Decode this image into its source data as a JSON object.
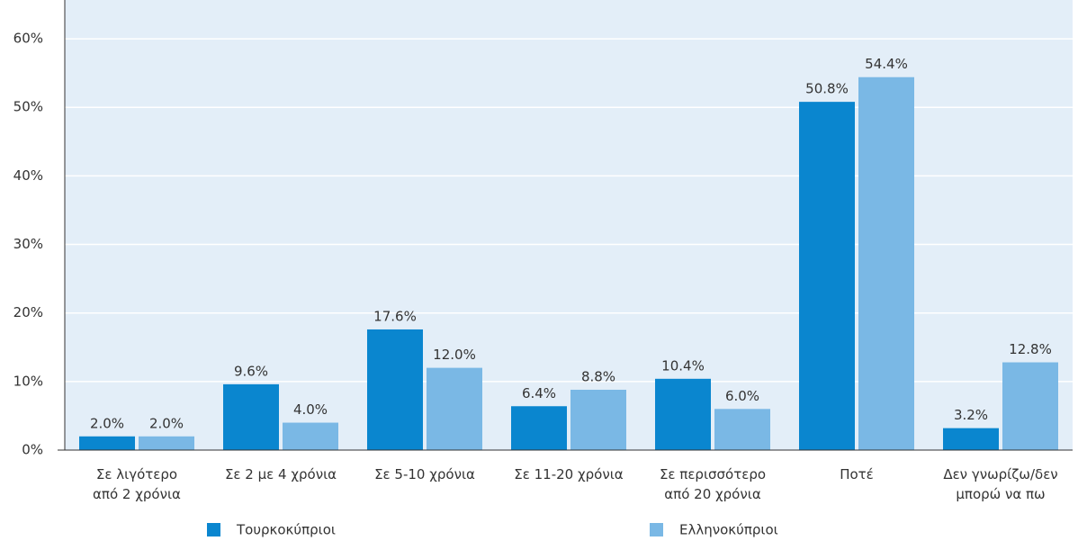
{
  "chart_data": {
    "type": "bar",
    "categories": [
      [
        "Σε λιγότερο",
        "από 2 χρόνια"
      ],
      [
        "Σε 2 με 4 χρόνια"
      ],
      [
        "Σε 5-10 χρόνια"
      ],
      [
        "Σε 11-20 χρόνια"
      ],
      [
        "Σε περισσότερο",
        "από 20 χρόνια"
      ],
      [
        "Ποτέ"
      ],
      [
        "Δεν γνωρίζω/δεν",
        "μπορώ να πω"
      ]
    ],
    "series": [
      {
        "name": "Τουρκοκύπριοι",
        "color": "#0a86cf",
        "values": [
          2.0,
          9.6,
          17.6,
          6.4,
          10.4,
          50.8,
          3.2
        ],
        "value_labels": [
          "2.0%",
          "9.6%",
          "17.6%",
          "6.4%",
          "10.4%",
          "50.8%",
          "3.2%"
        ]
      },
      {
        "name": "Ελληνοκύπριοι",
        "color": "#7ab8e5",
        "values": [
          2.0,
          4.0,
          12.0,
          8.8,
          6.0,
          54.4,
          12.8
        ],
        "value_labels": [
          "2.0%",
          "4.0%",
          "12.0%",
          "8.8%",
          "6.0%",
          "54.4%",
          "12.8%"
        ]
      }
    ],
    "ylim": [
      0,
      65
    ],
    "yticks": [
      {
        "value": 0,
        "label": "0%"
      },
      {
        "value": 10,
        "label": "10%"
      },
      {
        "value": 20,
        "label": "20%"
      },
      {
        "value": 30,
        "label": "30%"
      },
      {
        "value": 40,
        "label": "40%"
      },
      {
        "value": 50,
        "label": "50%"
      },
      {
        "value": 60,
        "label": "60%"
      }
    ],
    "grid": true,
    "legend": "bottom"
  }
}
